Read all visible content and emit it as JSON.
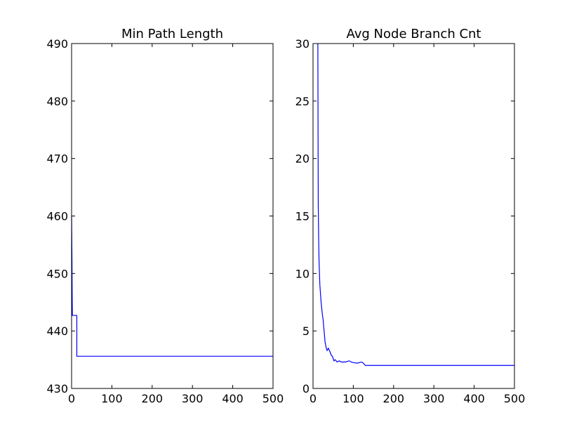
{
  "chart_data": [
    {
      "type": "line",
      "title": "Min Path Length",
      "xlabel": "",
      "ylabel": "",
      "xlim": [
        0,
        500
      ],
      "ylim": [
        430,
        490
      ],
      "xticks": [
        "0",
        "100",
        "200",
        "300",
        "400",
        "500"
      ],
      "yticks": [
        "430",
        "440",
        "450",
        "460",
        "470",
        "480",
        "490"
      ],
      "grid": false,
      "series": [
        {
          "color": "#0000ff",
          "x": [
            0,
            1,
            1.5,
            2,
            3,
            13,
            13,
            14,
            500
          ],
          "y": [
            460,
            452,
            446,
            442.7,
            442.7,
            442.7,
            435.6,
            435.6,
            435.6
          ]
        }
      ]
    },
    {
      "type": "line",
      "title": "Avg Node Branch Cnt",
      "xlabel": "",
      "ylabel": "",
      "xlim": [
        0,
        500
      ],
      "ylim": [
        0,
        30
      ],
      "xticks": [
        "0",
        "100",
        "200",
        "300",
        "400",
        "500"
      ],
      "yticks": [
        "0",
        "5",
        "10",
        "15",
        "20",
        "25",
        "30"
      ],
      "grid": false,
      "series": [
        {
          "color": "#0000ff",
          "x": [
            12,
            12.5,
            13,
            14,
            15,
            17,
            20,
            23,
            25,
            27,
            30,
            33,
            35,
            38,
            42,
            45,
            48,
            52,
            55,
            60,
            65,
            70,
            80,
            90,
            95,
            100,
            110,
            120,
            125,
            130,
            500
          ],
          "y": [
            30,
            22,
            16,
            13,
            11,
            9,
            7.5,
            6.5,
            6,
            5.2,
            4,
            3.5,
            3.3,
            3.5,
            3.2,
            2.9,
            2.8,
            2.4,
            2.5,
            2.3,
            2.4,
            2.3,
            2.3,
            2.4,
            2.3,
            2.25,
            2.2,
            2.3,
            2.2,
            2.0,
            2.0
          ]
        }
      ]
    }
  ]
}
